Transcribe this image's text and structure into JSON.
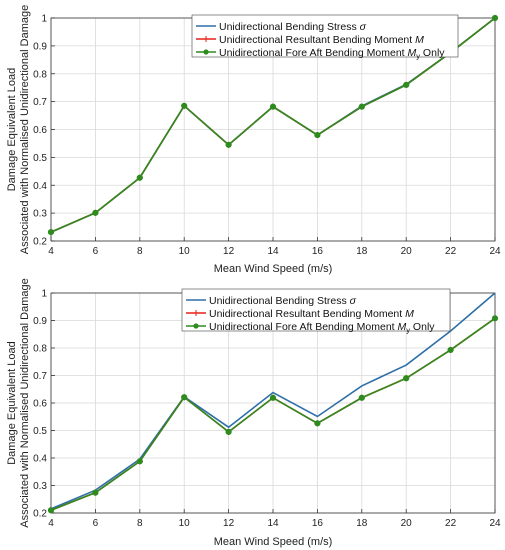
{
  "chart_data": [
    {
      "type": "line",
      "title": "",
      "xlabel": "Mean Wind Speed (m/s)",
      "ylabel_lines": [
        "Damage Equivalent Load",
        "Associated with Normalised Unidirectional Damage"
      ],
      "x": [
        4,
        6,
        8,
        10,
        12,
        14,
        16,
        18,
        20,
        22,
        24
      ],
      "xlim": [
        4,
        24
      ],
      "ylim": [
        0.2,
        1
      ],
      "xticks": [
        "4",
        "6",
        "8",
        "10",
        "12",
        "14",
        "16",
        "18",
        "20",
        "22",
        "24"
      ],
      "yticks": [
        "0.2",
        "0.3",
        "0.4",
        "0.5",
        "0.6",
        "0.7",
        "0.8",
        "0.9",
        "1"
      ],
      "grid": true,
      "legend_position": "top-center",
      "series": [
        {
          "name": "Unidirectional Bending Stress",
          "name_symbol": "σ",
          "color": "#2e6fa7",
          "marker": "none",
          "values": [
            0.232,
            0.301,
            0.427,
            0.685,
            0.545,
            0.682,
            0.58,
            0.684,
            0.762,
            0.876,
            1.0
          ]
        },
        {
          "name": "Unidirectional Resultant Bending Moment",
          "name_symbol": "M",
          "color": "#e8201a",
          "marker": "plus",
          "values": [
            0.232,
            0.301,
            0.427,
            0.685,
            0.545,
            0.682,
            0.58,
            0.682,
            0.76,
            0.876,
            1.0
          ]
        },
        {
          "name": "Unidirectional Fore Aft Bending Moment",
          "name_symbol": "M",
          "name_sub": "y",
          "name_suffix": "Only",
          "color": "#2e8b1e",
          "marker": "circle",
          "values": [
            0.232,
            0.301,
            0.427,
            0.685,
            0.545,
            0.682,
            0.58,
            0.682,
            0.76,
            0.876,
            1.0
          ]
        }
      ]
    },
    {
      "type": "line",
      "title": "",
      "xlabel": "Mean Wind Speed (m/s)",
      "ylabel_lines": [
        "Damage Equivalent Load",
        "Associated with Normalised Unidirectional Damage"
      ],
      "x": [
        4,
        6,
        8,
        10,
        12,
        14,
        16,
        18,
        20,
        22,
        24
      ],
      "xlim": [
        4,
        24
      ],
      "ylim": [
        0.2,
        1
      ],
      "xticks": [
        "4",
        "6",
        "8",
        "10",
        "12",
        "14",
        "16",
        "18",
        "20",
        "22",
        "24"
      ],
      "yticks": [
        "0.2",
        "0.3",
        "0.4",
        "0.5",
        "0.6",
        "0.7",
        "0.8",
        "0.9",
        "1"
      ],
      "grid": true,
      "legend_position": "top-center",
      "series": [
        {
          "name": "Unidirectional Bending Stress",
          "name_symbol": "σ",
          "color": "#2e6fa7",
          "marker": "none",
          "values": [
            0.215,
            0.283,
            0.396,
            0.623,
            0.512,
            0.638,
            0.551,
            0.662,
            0.738,
            0.862,
            1.0
          ]
        },
        {
          "name": "Unidirectional Resultant Bending Moment",
          "name_symbol": "M",
          "color": "#e8201a",
          "marker": "plus",
          "values": [
            0.21,
            0.274,
            0.388,
            0.621,
            0.495,
            0.619,
            0.526,
            0.619,
            0.69,
            0.793,
            0.908
          ]
        },
        {
          "name": "Unidirectional Fore Aft Bending Moment",
          "name_symbol": "M",
          "name_sub": "y",
          "name_suffix": "Only",
          "color": "#2e8b1e",
          "marker": "circle",
          "values": [
            0.21,
            0.274,
            0.388,
            0.621,
            0.495,
            0.619,
            0.526,
            0.619,
            0.69,
            0.793,
            0.908
          ]
        }
      ]
    }
  ]
}
